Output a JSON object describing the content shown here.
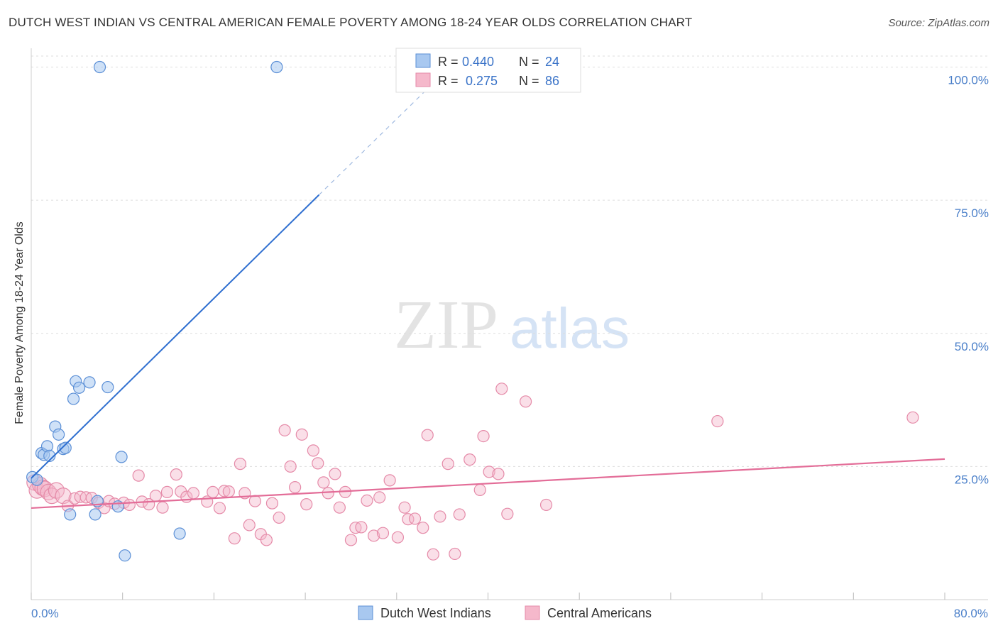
{
  "title": "DUTCH WEST INDIAN VS CENTRAL AMERICAN FEMALE POVERTY AMONG 18-24 YEAR OLDS CORRELATION CHART",
  "source": "Source: ZipAtlas.com",
  "watermark": {
    "zip": "ZIP",
    "atlas": "atlas"
  },
  "legend": {
    "series1": {
      "r_label": "R =",
      "r_value": "0.440",
      "n_label": "N =",
      "n_value": "24"
    },
    "series2": {
      "r_label": "R =",
      "r_value": "0.275",
      "n_label": "N =",
      "n_value": "86"
    }
  },
  "bottom_legend": {
    "series1": "Dutch West Indians",
    "series2": "Central Americans"
  },
  "colors": {
    "blue_fill": "#a8c8f0",
    "blue_stroke": "#5b8fd6",
    "blue_line": "#2f6fd0",
    "pink_fill": "#f5b8cb",
    "pink_stroke": "#e58aa8",
    "pink_line": "#e36d98",
    "tick_label": "#4a7fc9",
    "grid": "#dddddd"
  },
  "chart_data": {
    "type": "scatter",
    "title": "DUTCH WEST INDIAN VS CENTRAL AMERICAN FEMALE POVERTY AMONG 18-24 YEAR OLDS CORRELATION CHART",
    "xlabel": "",
    "ylabel": "Female Poverty Among 18-24 Year Olds",
    "xlim": [
      0,
      80
    ],
    "ylim": [
      0,
      102
    ],
    "x_tick_labels": [
      "0.0%",
      "80.0%"
    ],
    "y_ticks": [
      25,
      50,
      75,
      100
    ],
    "y_tick_labels": [
      "25.0%",
      "50.0%",
      "75.0%",
      "100.0%"
    ],
    "series": [
      {
        "name": "Dutch West Indians",
        "R": 0.44,
        "N": 24,
        "trend": {
          "x0": 0,
          "y0": 22.8,
          "x1": 25.2,
          "y1": 76,
          "dash_to_x": 34.5,
          "dash_to_y": 95.5
        },
        "points": [
          {
            "x": 0.1,
            "y": 23
          },
          {
            "x": 0.5,
            "y": 22.5
          },
          {
            "x": 0.9,
            "y": 27.5
          },
          {
            "x": 1.1,
            "y": 27.2
          },
          {
            "x": 1.4,
            "y": 28.8
          },
          {
            "x": 1.6,
            "y": 27
          },
          {
            "x": 2.1,
            "y": 32.5
          },
          {
            "x": 2.4,
            "y": 31
          },
          {
            "x": 2.8,
            "y": 28.3
          },
          {
            "x": 3.0,
            "y": 28.5
          },
          {
            "x": 3.4,
            "y": 16
          },
          {
            "x": 3.7,
            "y": 37.7
          },
          {
            "x": 3.9,
            "y": 41
          },
          {
            "x": 4.2,
            "y": 39.8
          },
          {
            "x": 5.1,
            "y": 40.8
          },
          {
            "x": 5.6,
            "y": 16
          },
          {
            "x": 5.8,
            "y": 18.5
          },
          {
            "x": 6.0,
            "y": 100
          },
          {
            "x": 6.7,
            "y": 39.9
          },
          {
            "x": 7.6,
            "y": 17.5
          },
          {
            "x": 7.9,
            "y": 26.8
          },
          {
            "x": 8.2,
            "y": 8.3
          },
          {
            "x": 13,
            "y": 12.4
          },
          {
            "x": 21.5,
            "y": 100
          }
        ]
      },
      {
        "name": "Central Americans",
        "R": 0.275,
        "N": 86,
        "trend": {
          "x0": 0,
          "y0": 17.2,
          "x1": 80,
          "y1": 26.4
        },
        "points": [
          {
            "x": 0.3,
            "y": 22
          },
          {
            "x": 0.5,
            "y": 20.5
          },
          {
            "x": 0.8,
            "y": 21.5
          },
          {
            "x": 1.0,
            "y": 21
          },
          {
            "x": 1.2,
            "y": 20.8
          },
          {
            "x": 1.5,
            "y": 20.2
          },
          {
            "x": 1.8,
            "y": 19.5
          },
          {
            "x": 2.2,
            "y": 20.5
          },
          {
            "x": 2.8,
            "y": 19.5
          },
          {
            "x": 3.2,
            "y": 17.6
          },
          {
            "x": 3.8,
            "y": 19
          },
          {
            "x": 4.3,
            "y": 19.3
          },
          {
            "x": 4.8,
            "y": 19.2
          },
          {
            "x": 5.3,
            "y": 19.1
          },
          {
            "x": 5.9,
            "y": 18.2
          },
          {
            "x": 6.4,
            "y": 17.2
          },
          {
            "x": 6.8,
            "y": 18.5
          },
          {
            "x": 7.3,
            "y": 18
          },
          {
            "x": 8.1,
            "y": 18.2
          },
          {
            "x": 8.6,
            "y": 17.8
          },
          {
            "x": 9.4,
            "y": 23.3
          },
          {
            "x": 9.7,
            "y": 18.4
          },
          {
            "x": 10.3,
            "y": 17.9
          },
          {
            "x": 10.9,
            "y": 19.5
          },
          {
            "x": 11.5,
            "y": 17.3
          },
          {
            "x": 11.9,
            "y": 20.2
          },
          {
            "x": 12.7,
            "y": 23.5
          },
          {
            "x": 13.1,
            "y": 20.3
          },
          {
            "x": 13.6,
            "y": 19.3
          },
          {
            "x": 14.2,
            "y": 20
          },
          {
            "x": 15.4,
            "y": 18.4
          },
          {
            "x": 15.9,
            "y": 20.2
          },
          {
            "x": 16.5,
            "y": 17.2
          },
          {
            "x": 16.9,
            "y": 20.4
          },
          {
            "x": 17.3,
            "y": 20.3
          },
          {
            "x": 17.8,
            "y": 11.5
          },
          {
            "x": 18.3,
            "y": 25.5
          },
          {
            "x": 18.7,
            "y": 20
          },
          {
            "x": 19.1,
            "y": 14
          },
          {
            "x": 19.6,
            "y": 18.5
          },
          {
            "x": 20.1,
            "y": 12.3
          },
          {
            "x": 20.6,
            "y": 11.2
          },
          {
            "x": 21.1,
            "y": 18.1
          },
          {
            "x": 21.7,
            "y": 15.4
          },
          {
            "x": 22.2,
            "y": 31.8
          },
          {
            "x": 22.7,
            "y": 25
          },
          {
            "x": 23.1,
            "y": 21.1
          },
          {
            "x": 23.7,
            "y": 31
          },
          {
            "x": 24.1,
            "y": 17.9
          },
          {
            "x": 24.7,
            "y": 28
          },
          {
            "x": 25.1,
            "y": 25.6
          },
          {
            "x": 25.6,
            "y": 22
          },
          {
            "x": 26.0,
            "y": 20
          },
          {
            "x": 26.6,
            "y": 23.6
          },
          {
            "x": 27.0,
            "y": 17.3
          },
          {
            "x": 27.5,
            "y": 20.2
          },
          {
            "x": 28.0,
            "y": 11.2
          },
          {
            "x": 28.4,
            "y": 13.5
          },
          {
            "x": 28.9,
            "y": 13.6
          },
          {
            "x": 29.4,
            "y": 18.6
          },
          {
            "x": 30.0,
            "y": 12
          },
          {
            "x": 30.5,
            "y": 19.2
          },
          {
            "x": 30.8,
            "y": 12.5
          },
          {
            "x": 31.4,
            "y": 22.4
          },
          {
            "x": 32.1,
            "y": 11.7
          },
          {
            "x": 32.7,
            "y": 17.3
          },
          {
            "x": 33.0,
            "y": 15.1
          },
          {
            "x": 33.6,
            "y": 15.2
          },
          {
            "x": 34.3,
            "y": 13.5
          },
          {
            "x": 34.7,
            "y": 30.9
          },
          {
            "x": 35.2,
            "y": 8.5
          },
          {
            "x": 35.8,
            "y": 15.6
          },
          {
            "x": 36.5,
            "y": 25.5
          },
          {
            "x": 37.1,
            "y": 8.6
          },
          {
            "x": 37.5,
            "y": 16
          },
          {
            "x": 38.4,
            "y": 26.3
          },
          {
            "x": 39.3,
            "y": 20.6
          },
          {
            "x": 39.6,
            "y": 30.7
          },
          {
            "x": 40.1,
            "y": 24
          },
          {
            "x": 40.9,
            "y": 23.6
          },
          {
            "x": 41.2,
            "y": 39.6
          },
          {
            "x": 41.7,
            "y": 16.1
          },
          {
            "x": 43.3,
            "y": 37.2
          },
          {
            "x": 45.1,
            "y": 17.8
          },
          {
            "x": 60.1,
            "y": 33.5
          },
          {
            "x": 77.2,
            "y": 34.2
          }
        ]
      }
    ]
  }
}
